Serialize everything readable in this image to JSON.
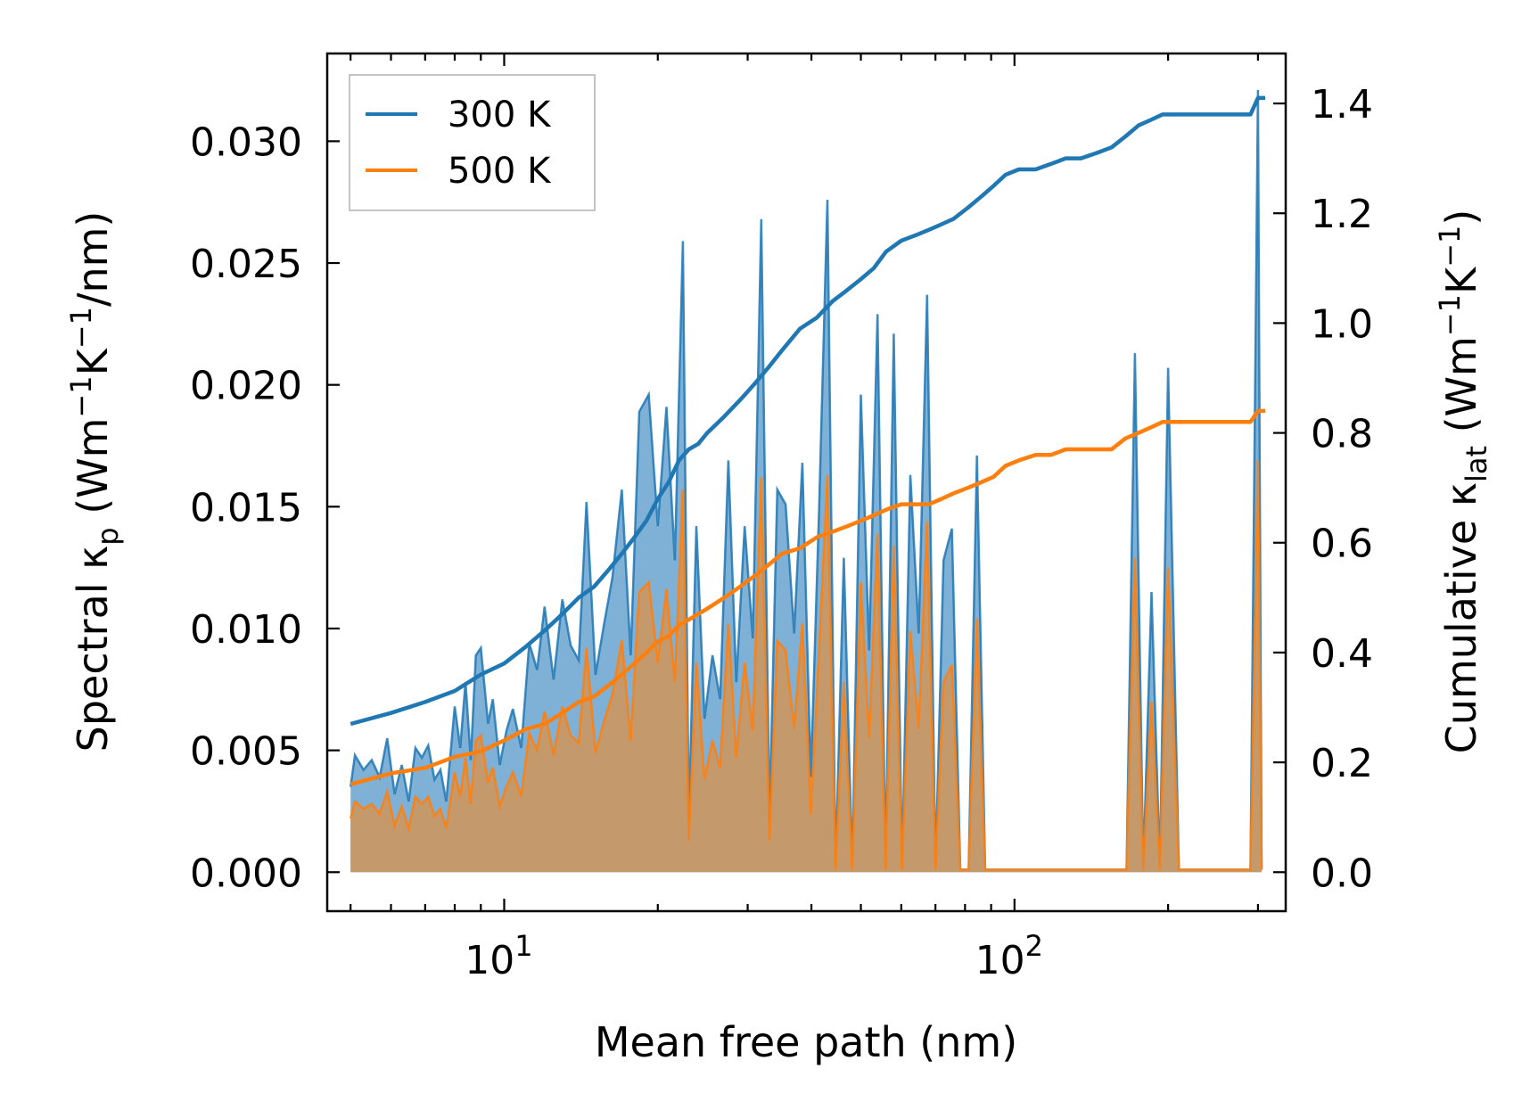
{
  "chart_data": {
    "type": "line",
    "xscale": "log",
    "xlim": [
      4.5,
      340
    ],
    "y_left_lim": [
      -0.0016,
      0.0336
    ],
    "y_right_lim": [
      -0.071,
      1.491
    ],
    "xlabel": "Mean free path (nm)",
    "ylabel_left": "Spectral κp (Wm−1K−1/nm)",
    "ylabel_right": "Cumulative κlat (Wm−1K−1)",
    "x_ticks": [
      10,
      100
    ],
    "x_tick_labels": [
      "10^1",
      "10^2"
    ],
    "y_left_ticks": [
      0.0,
      0.005,
      0.01,
      0.015,
      0.02,
      0.025,
      0.03
    ],
    "y_left_tick_labels": [
      "0.000",
      "0.005",
      "0.010",
      "0.015",
      "0.020",
      "0.025",
      "0.030"
    ],
    "y_right_ticks": [
      0.0,
      0.2,
      0.4,
      0.6,
      0.8,
      1.0,
      1.2,
      1.4
    ],
    "y_right_tick_labels": [
      "0.0",
      "0.2",
      "0.4",
      "0.6",
      "0.8",
      "1.0",
      "1.2",
      "1.4"
    ],
    "legend": {
      "position": "top-left",
      "entries": [
        "300 K",
        "500 K"
      ]
    },
    "colors": {
      "300 K": "#1f77b4",
      "500 K": "#ff7f0e",
      "fill_300": "#7fb0d6",
      "fill_500": "#c49a6c"
    },
    "series": [
      {
        "name": "300 K",
        "kind": "spectral",
        "axis": "left",
        "x": [
          5.0,
          5.1,
          5.3,
          5.5,
          5.7,
          5.9,
          6.1,
          6.3,
          6.5,
          6.7,
          6.9,
          7.1,
          7.3,
          7.5,
          7.7,
          8.0,
          8.2,
          8.4,
          8.6,
          8.8,
          9.0,
          9.3,
          9.5,
          9.8,
          10.1,
          10.4,
          10.8,
          11.2,
          11.6,
          12.0,
          12.5,
          13.0,
          13.5,
          14.0,
          14.5,
          15.1,
          15.7,
          16.3,
          17.0,
          17.7,
          18.4,
          19.2,
          20.0,
          20.8,
          21.6,
          22.4,
          23.0,
          23.8,
          24.7,
          25.6,
          26.5,
          27.5,
          28.5,
          29.6,
          30.7,
          31.9,
          33.1,
          34.3,
          35.6,
          37.0,
          38.4,
          39.9,
          41.4,
          43.0,
          44.6,
          46.3,
          48.1,
          50.0,
          51.9,
          53.9,
          55.9,
          58.0,
          60.2,
          62.5,
          64.9,
          67.4,
          70.0,
          72.6,
          75.4,
          78.3,
          81.3,
          84.4,
          87.6,
          91.0,
          94.5,
          98.1,
          101.8,
          105.7,
          109.8,
          114.0,
          118.3,
          122.8,
          127.5,
          132.4,
          137.5,
          142.7,
          148.2,
          153.8,
          159.7,
          165.8,
          172.2,
          178.8,
          185.6,
          192.7,
          200.0,
          210.0,
          220.0,
          235.0,
          250.0,
          265.0,
          280.0,
          290.0,
          300.0,
          305.0
        ],
        "y": [
          0.0035,
          0.0048,
          0.0042,
          0.0046,
          0.0039,
          0.0055,
          0.0032,
          0.0044,
          0.0029,
          0.0051,
          0.0047,
          0.0052,
          0.0038,
          0.0042,
          0.0029,
          0.0068,
          0.0051,
          0.0078,
          0.0046,
          0.0089,
          0.0092,
          0.0061,
          0.0071,
          0.0044,
          0.0058,
          0.0067,
          0.0051,
          0.0094,
          0.0083,
          0.0109,
          0.0079,
          0.0112,
          0.0093,
          0.0087,
          0.0152,
          0.0081,
          0.0102,
          0.0121,
          0.0157,
          0.0089,
          0.0189,
          0.0196,
          0.0142,
          0.0191,
          0.0128,
          0.0259,
          0.0021,
          0.0142,
          0.0063,
          0.0089,
          0.0071,
          0.0169,
          0.0078,
          0.0142,
          0.0096,
          0.0268,
          0.0021,
          0.0157,
          0.0151,
          0.0098,
          0.0168,
          0.0039,
          0.0148,
          0.0276,
          0.0001,
          0.0129,
          0.0001,
          0.0196,
          0.0091,
          0.0229,
          0.0001,
          0.0221,
          0.0001,
          0.0163,
          0.0098,
          0.0237,
          0.0001,
          0.0128,
          0.0141,
          0.0001,
          0.0001,
          0.0171,
          0.0001,
          0.0001,
          0.0001,
          0.0001,
          0.0001,
          0.0001,
          0.0001,
          0.0001,
          0.0001,
          0.0001,
          0.0001,
          0.0001,
          0.0001,
          0.0001,
          0.0001,
          0.0001,
          0.0001,
          0.0001,
          0.0213,
          0.0001,
          0.0115,
          0.0001,
          0.0207,
          0.0001,
          0.0001,
          0.0001,
          0.0001,
          0.0001,
          0.0001,
          0.0001,
          0.0321,
          0.0001
        ]
      },
      {
        "name": "500 K",
        "kind": "spectral",
        "axis": "left",
        "x": [
          5.0,
          5.1,
          5.3,
          5.5,
          5.7,
          5.9,
          6.1,
          6.3,
          6.5,
          6.7,
          6.9,
          7.1,
          7.3,
          7.5,
          7.7,
          8.0,
          8.2,
          8.4,
          8.6,
          8.8,
          9.0,
          9.3,
          9.5,
          9.8,
          10.1,
          10.4,
          10.8,
          11.2,
          11.6,
          12.0,
          12.5,
          13.0,
          13.5,
          14.0,
          14.5,
          15.1,
          15.7,
          16.3,
          17.0,
          17.7,
          18.4,
          19.2,
          20.0,
          20.8,
          21.6,
          22.4,
          23.0,
          23.8,
          24.7,
          25.6,
          26.5,
          27.5,
          28.5,
          29.6,
          30.7,
          31.9,
          33.1,
          34.3,
          35.6,
          37.0,
          38.4,
          39.9,
          41.4,
          43.0,
          44.6,
          46.3,
          48.1,
          50.0,
          51.9,
          53.9,
          55.9,
          58.0,
          60.2,
          62.5,
          64.9,
          67.4,
          70.0,
          72.6,
          75.4,
          78.3,
          81.3,
          84.4,
          87.6,
          91.0,
          94.5,
          98.1,
          101.8,
          105.7,
          109.8,
          114.0,
          118.3,
          122.8,
          127.5,
          132.4,
          137.5,
          142.7,
          148.2,
          153.8,
          159.7,
          165.8,
          172.2,
          178.8,
          185.6,
          192.7,
          200.0,
          210.0,
          220.0,
          235.0,
          250.0,
          265.0,
          280.0,
          290.0,
          300.0,
          305.0
        ],
        "y": [
          0.0022,
          0.0029,
          0.0026,
          0.0028,
          0.0024,
          0.0033,
          0.0019,
          0.0027,
          0.0018,
          0.0031,
          0.0028,
          0.0031,
          0.0023,
          0.0026,
          0.0018,
          0.0041,
          0.0031,
          0.0047,
          0.0028,
          0.0054,
          0.0056,
          0.0037,
          0.0043,
          0.0027,
          0.0035,
          0.0041,
          0.0031,
          0.0057,
          0.005,
          0.0066,
          0.0048,
          0.0068,
          0.0056,
          0.0053,
          0.0092,
          0.0049,
          0.0062,
          0.0073,
          0.0095,
          0.0054,
          0.0115,
          0.0119,
          0.0086,
          0.0116,
          0.0078,
          0.0157,
          0.0013,
          0.0086,
          0.0038,
          0.0054,
          0.0043,
          0.0102,
          0.0047,
          0.0086,
          0.0058,
          0.0162,
          0.0013,
          0.0095,
          0.0091,
          0.0059,
          0.0102,
          0.0024,
          0.009,
          0.0163,
          0.0001,
          0.0078,
          0.0001,
          0.0119,
          0.0055,
          0.0139,
          0.0001,
          0.0134,
          0.0001,
          0.0099,
          0.0059,
          0.0144,
          0.0001,
          0.0078,
          0.0085,
          0.0001,
          0.0001,
          0.0104,
          0.0001,
          0.0001,
          0.0001,
          0.0001,
          0.0001,
          0.0001,
          0.0001,
          0.0001,
          0.0001,
          0.0001,
          0.0001,
          0.0001,
          0.0001,
          0.0001,
          0.0001,
          0.0001,
          0.0001,
          0.0001,
          0.0129,
          0.0001,
          0.007,
          0.0001,
          0.0125,
          0.0001,
          0.0001,
          0.0001,
          0.0001,
          0.0001,
          0.0001,
          0.0001,
          0.0169,
          0.0001
        ]
      },
      {
        "name": "300 K",
        "kind": "cumulative",
        "axis": "right",
        "x": [
          5.0,
          6.0,
          7.0,
          8.0,
          9.0,
          10.0,
          11.0,
          12.0,
          13.0,
          14.0,
          15.0,
          16.0,
          17.0,
          18.0,
          19.0,
          20.0,
          21.0,
          22.0,
          23.0,
          24.0,
          25.0,
          27.0,
          29.0,
          31.0,
          33.0,
          35.0,
          38.0,
          41.0,
          44.0,
          47.0,
          50.0,
          53.0,
          56.0,
          60.0,
          64.0,
          68.0,
          72.0,
          76.0,
          81.0,
          86.0,
          91.0,
          96.0,
          102.0,
          110.0,
          118.0,
          126.0,
          135.0,
          145.0,
          155.0,
          165.0,
          175.0,
          185.0,
          195.0,
          210.0,
          230.0,
          260.0,
          290.0,
          300.0,
          310.0
        ],
        "y": [
          0.27,
          0.29,
          0.31,
          0.33,
          0.36,
          0.38,
          0.41,
          0.44,
          0.47,
          0.5,
          0.52,
          0.55,
          0.58,
          0.61,
          0.64,
          0.68,
          0.71,
          0.75,
          0.77,
          0.78,
          0.8,
          0.83,
          0.86,
          0.89,
          0.92,
          0.95,
          0.99,
          1.01,
          1.04,
          1.06,
          1.08,
          1.1,
          1.13,
          1.15,
          1.16,
          1.17,
          1.18,
          1.19,
          1.21,
          1.23,
          1.25,
          1.27,
          1.28,
          1.28,
          1.29,
          1.3,
          1.3,
          1.31,
          1.32,
          1.34,
          1.36,
          1.37,
          1.38,
          1.38,
          1.38,
          1.38,
          1.38,
          1.41,
          1.41
        ]
      },
      {
        "name": "500 K",
        "kind": "cumulative",
        "axis": "right",
        "x": [
          5.0,
          6.0,
          7.0,
          8.0,
          9.0,
          10.0,
          11.0,
          12.0,
          13.0,
          14.0,
          15.0,
          16.0,
          17.0,
          18.0,
          19.0,
          20.0,
          21.0,
          22.0,
          23.0,
          24.0,
          25.0,
          27.0,
          29.0,
          31.0,
          33.0,
          35.0,
          38.0,
          41.0,
          44.0,
          47.0,
          50.0,
          53.0,
          56.0,
          60.0,
          64.0,
          68.0,
          72.0,
          76.0,
          81.0,
          86.0,
          91.0,
          96.0,
          102.0,
          110.0,
          118.0,
          126.0,
          135.0,
          145.0,
          155.0,
          165.0,
          175.0,
          185.0,
          195.0,
          210.0,
          230.0,
          260.0,
          290.0,
          300.0,
          310.0
        ],
        "y": [
          0.16,
          0.18,
          0.19,
          0.21,
          0.22,
          0.24,
          0.26,
          0.27,
          0.29,
          0.31,
          0.32,
          0.34,
          0.36,
          0.38,
          0.4,
          0.42,
          0.43,
          0.45,
          0.46,
          0.47,
          0.48,
          0.5,
          0.52,
          0.54,
          0.56,
          0.58,
          0.59,
          0.61,
          0.62,
          0.63,
          0.64,
          0.65,
          0.66,
          0.67,
          0.67,
          0.67,
          0.68,
          0.69,
          0.7,
          0.71,
          0.72,
          0.74,
          0.75,
          0.76,
          0.76,
          0.77,
          0.77,
          0.77,
          0.77,
          0.79,
          0.8,
          0.81,
          0.82,
          0.82,
          0.82,
          0.82,
          0.82,
          0.84,
          0.84
        ]
      }
    ]
  }
}
